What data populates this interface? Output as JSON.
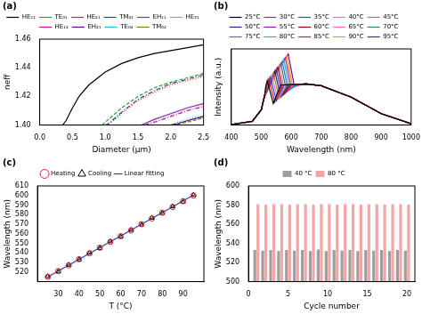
{
  "chart_data": [
    {
      "type": "line",
      "title": "(a)",
      "x_label": "Diameter (μm)",
      "y_label": "neff",
      "xlim": [
        0,
        2.5
      ],
      "xticks": [
        {
          "value": 0,
          "label": "0.0"
        },
        0.5,
        {
          "value": 1,
          "label": "1.0"
        },
        1.5,
        {
          "value": 2,
          "label": "2.0"
        },
        2.5
      ],
      "ylim": [
        1.4,
        1.46
      ],
      "yticks": [
        {
          "value": 1.4,
          "label": "1.40"
        },
        1.42,
        1.44,
        1.46
      ],
      "grid": false,
      "legend": "top",
      "series": [
        {
          "name": "HE₁₁",
          "color": "#000000",
          "line_style": "solid",
          "x": [
            0.35,
            0.4,
            0.5,
            0.6,
            0.75,
            1.0,
            1.25,
            1.5,
            1.75,
            2.0,
            2.25,
            2.5
          ],
          "values": [
            1.4,
            1.403,
            1.412,
            1.42,
            1.428,
            1.437,
            1.443,
            1.447,
            1.45,
            1.452,
            1.454,
            1.456
          ]
        },
        {
          "name": "TE₀₁",
          "color": "#2ca02c",
          "line_style": "dashed",
          "x": [
            0.95,
            1.0,
            1.1,
            1.25,
            1.5,
            1.75,
            2.0,
            2.25,
            2.5
          ],
          "values": [
            1.4,
            1.402,
            1.406,
            1.412,
            1.42,
            1.426,
            1.43,
            1.433,
            1.436
          ]
        },
        {
          "name": "HE₂₁",
          "color": "#d62728",
          "line_style": "dotted",
          "x": [
            1.02,
            1.1,
            1.25,
            1.5,
            1.75,
            2.0,
            2.25,
            2.5
          ],
          "values": [
            1.4,
            1.402,
            1.408,
            1.417,
            1.423,
            1.428,
            1.431,
            1.434
          ]
        },
        {
          "name": "TM₀₁",
          "color": "#1f3fbf",
          "line_style": "dashdot",
          "x": [
            1.0,
            1.05,
            1.1,
            1.25,
            1.5,
            1.75,
            2.0,
            2.25,
            2.5
          ],
          "values": [
            1.4,
            1.401,
            1.403,
            1.409,
            1.418,
            1.424,
            1.429,
            1.432,
            1.435
          ]
        },
        {
          "name": "EH₁₁",
          "color": "#7b2fbe",
          "line_style": "solid",
          "x": [
            1.55,
            1.6,
            1.75,
            2.0,
            2.25,
            2.5
          ],
          "values": [
            1.4,
            1.401,
            1.404,
            1.408,
            1.412,
            1.415
          ]
        },
        {
          "name": "HE₃₁",
          "color": "#e377c2",
          "line_style": "dotted",
          "x": [
            1.58,
            1.75,
            2.0,
            2.25,
            2.5
          ],
          "values": [
            1.4,
            1.403,
            1.407,
            1.411,
            1.414
          ]
        },
        {
          "name": "HE₁₂",
          "color": "#c71585",
          "line_style": "dashdot",
          "x": [
            1.6,
            1.75,
            2.0,
            2.25,
            2.5
          ],
          "values": [
            1.4,
            1.402,
            1.406,
            1.41,
            1.413
          ]
        },
        {
          "name": "EH₂₁",
          "color": "#4b0082",
          "line_style": "solid",
          "x": [
            2.0,
            2.1,
            2.25,
            2.5
          ],
          "values": [
            1.4,
            1.401,
            1.403,
            1.406
          ]
        },
        {
          "name": "TE₀₂",
          "color": "#17becf",
          "line_style": "dotted",
          "x": [
            1.98,
            2.1,
            2.25,
            2.5
          ],
          "values": [
            1.4,
            1.402,
            1.404,
            1.407
          ]
        },
        {
          "name": "TM₀₂",
          "color": "#8c6d1f",
          "line_style": "dashed",
          "x": [
            2.02,
            2.1,
            2.25,
            2.5
          ],
          "values": [
            1.4,
            1.4005,
            1.402,
            1.405
          ]
        }
      ]
    },
    {
      "type": "line",
      "title": "(b)",
      "x_label": "Wavelength (nm)",
      "y_label": "Intensity (a.u.)",
      "xlim": [
        400,
        1000
      ],
      "xticks": [
        400,
        500,
        600,
        700,
        800,
        900,
        1000
      ],
      "ylim": [
        0,
        3
      ],
      "tick_labels": "x",
      "grid": false,
      "legend": "top",
      "series": [
        {
          "name": "25°C",
          "color": "#000000",
          "line_style": "solid",
          "x": [
            400,
            470,
            500,
            510,
            515,
            520,
            540,
            565,
            650,
            700,
            800,
            900,
            1000
          ],
          "values": [
            0.02,
            0.15,
            0.6,
            1.1,
            1.53,
            1.75,
            0.85,
            1.58,
            1.62,
            1.55,
            1.1,
            0.45,
            0.05
          ]
        },
        {
          "name": "30°C",
          "color": "#e41a1c",
          "line_style": "solid",
          "x": [
            400,
            470,
            500,
            510,
            517.5,
            525,
            545,
            570,
            650,
            700,
            800,
            900,
            1000
          ],
          "values": [
            0.02,
            0.15,
            0.6,
            1.1,
            1.57,
            1.83,
            0.9,
            1.58,
            1.62,
            1.55,
            1.1,
            0.45,
            0.05
          ]
        },
        {
          "name": "35°C",
          "color": "#1f4fd8",
          "line_style": "solid",
          "x": [
            400,
            470,
            500,
            510,
            520,
            530,
            550,
            575,
            650,
            700,
            800,
            900,
            1000
          ],
          "values": [
            0.02,
            0.15,
            0.6,
            1.1,
            1.6,
            1.9,
            0.95,
            1.58,
            1.62,
            1.55,
            1.1,
            0.45,
            0.05
          ]
        },
        {
          "name": "40°C",
          "color": "#e377c2",
          "line_style": "solid",
          "x": [
            400,
            470,
            500,
            510,
            522.5,
            535,
            555,
            580,
            650,
            700,
            800,
            900,
            1000
          ],
          "values": [
            0.02,
            0.15,
            0.6,
            1.1,
            1.64,
            1.98,
            1.0,
            1.58,
            1.62,
            1.55,
            1.1,
            0.45,
            0.05
          ]
        },
        {
          "name": "45°C",
          "color": "#b8860b",
          "line_style": "solid",
          "x": [
            400,
            470,
            500,
            510,
            525,
            540,
            560,
            585,
            650,
            700,
            800,
            900,
            1000
          ],
          "values": [
            0.02,
            0.15,
            0.6,
            1.1,
            1.68,
            2.05,
            1.05,
            1.58,
            1.62,
            1.55,
            1.1,
            0.45,
            0.05
          ]
        },
        {
          "name": "50°C",
          "color": "#1a237e",
          "line_style": "solid",
          "x": [
            400,
            470,
            500,
            510,
            527.5,
            545,
            565,
            590,
            650,
            700,
            800,
            900,
            1000
          ],
          "values": [
            0.02,
            0.15,
            0.6,
            1.1,
            1.72,
            2.13,
            1.1,
            1.58,
            1.62,
            1.55,
            1.1,
            0.45,
            0.05
          ]
        },
        {
          "name": "55°C",
          "color": "#7b1fa2",
          "line_style": "solid",
          "x": [
            400,
            470,
            500,
            510,
            530,
            550,
            570,
            595,
            650,
            700,
            800,
            900,
            1000
          ],
          "values": [
            0.02,
            0.15,
            0.6,
            1.1,
            1.75,
            2.2,
            1.15,
            1.58,
            1.62,
            1.55,
            1.1,
            0.45,
            0.05
          ]
        },
        {
          "name": "60°C",
          "color": "#8b0000",
          "line_style": "solid",
          "x": [
            400,
            470,
            500,
            510,
            532.5,
            555,
            575,
            600,
            650,
            700,
            800,
            900,
            1000
          ],
          "values": [
            0.02,
            0.15,
            0.6,
            1.1,
            1.79,
            2.28,
            1.2,
            1.58,
            1.62,
            1.55,
            1.1,
            0.45,
            0.05
          ]
        },
        {
          "name": "65°C",
          "color": "#ff69b4",
          "line_style": "solid",
          "x": [
            400,
            470,
            500,
            510,
            535,
            560,
            580,
            605,
            650,
            700,
            800,
            900,
            1000
          ],
          "values": [
            0.02,
            0.15,
            0.6,
            1.1,
            1.83,
            2.35,
            1.25,
            1.58,
            1.62,
            1.55,
            1.1,
            0.45,
            0.05
          ]
        },
        {
          "name": "70°C",
          "color": "#2e8b57",
          "line_style": "solid",
          "x": [
            400,
            470,
            500,
            510,
            537.5,
            565,
            585,
            610,
            650,
            700,
            800,
            900,
            1000
          ],
          "values": [
            0.02,
            0.15,
            0.6,
            1.1,
            1.87,
            2.43,
            1.3,
            1.58,
            1.62,
            1.55,
            1.1,
            0.45,
            0.05
          ]
        },
        {
          "name": "75°C",
          "color": "#4169e1",
          "line_style": "solid",
          "x": [
            400,
            470,
            500,
            510,
            540,
            570,
            590,
            615,
            650,
            700,
            800,
            900,
            1000
          ],
          "values": [
            0.02,
            0.15,
            0.6,
            1.1,
            1.9,
            2.5,
            1.35,
            1.58,
            1.62,
            1.55,
            1.1,
            0.45,
            0.05
          ]
        },
        {
          "name": "80°C",
          "color": "#00bcd4",
          "line_style": "solid",
          "x": [
            400,
            470,
            500,
            510,
            542.5,
            575,
            595,
            620,
            650,
            700,
            800,
            900,
            1000
          ],
          "values": [
            0.02,
            0.15,
            0.6,
            1.1,
            1.94,
            2.58,
            1.4,
            1.58,
            1.62,
            1.55,
            1.1,
            0.45,
            0.05
          ]
        },
        {
          "name": "85°C",
          "color": "#c71585",
          "line_style": "solid",
          "x": [
            400,
            470,
            500,
            510,
            545,
            580,
            600,
            625,
            650,
            700,
            800,
            900,
            1000
          ],
          "values": [
            0.02,
            0.15,
            0.6,
            1.1,
            1.98,
            2.65,
            1.45,
            1.58,
            1.62,
            1.55,
            1.1,
            0.45,
            0.05
          ]
        },
        {
          "name": "90°C",
          "color": "#ff8c00",
          "line_style": "solid",
          "x": [
            400,
            470,
            500,
            510,
            547.5,
            585,
            605,
            630,
            650,
            700,
            800,
            900,
            1000
          ],
          "values": [
            0.02,
            0.15,
            0.6,
            1.1,
            2.02,
            2.73,
            1.5,
            1.58,
            1.62,
            1.55,
            1.1,
            0.45,
            0.05
          ]
        },
        {
          "name": "95°C",
          "color": "#6a0dad",
          "line_style": "solid",
          "x": [
            400,
            470,
            500,
            510,
            550,
            590,
            610,
            635,
            650,
            700,
            800,
            900,
            1000
          ],
          "values": [
            0.02,
            0.15,
            0.6,
            1.1,
            2.05,
            2.8,
            1.55,
            1.58,
            1.62,
            1.55,
            1.1,
            0.45,
            0.05
          ]
        }
      ]
    },
    {
      "type": "scatter",
      "title": "(c)",
      "x_label": "T (°C)",
      "y_label": "Wavelength (nm)",
      "xlim": [
        20,
        100
      ],
      "xticks": [
        30,
        40,
        50,
        60,
        70,
        80,
        90
      ],
      "ylim": [
        510,
        610
      ],
      "yticks": [
        520,
        530,
        540,
        550,
        560,
        570,
        580,
        590,
        600,
        610
      ],
      "grid": false,
      "legend": "top",
      "series": [
        {
          "name": "Heating",
          "color": "#e02020",
          "marker": "circle",
          "x": [
            25,
            30,
            35,
            40,
            45,
            50,
            55,
            60,
            65,
            70,
            75,
            80,
            85,
            90,
            95
          ],
          "values": [
            515,
            521,
            527,
            533.5,
            539.5,
            545.5,
            551.5,
            557.5,
            563.5,
            570,
            576,
            582,
            588,
            594,
            600
          ]
        },
        {
          "name": "Cooling",
          "color": "#000000",
          "marker": "triangle",
          "x": [
            25,
            30,
            35,
            40,
            45,
            50,
            55,
            60,
            65,
            70,
            75,
            80,
            85,
            90,
            95
          ],
          "values": [
            515.5,
            520.5,
            527.5,
            533,
            540,
            545,
            552,
            557,
            564,
            569.5,
            576.5,
            581.5,
            588.5,
            593.5,
            600.5
          ]
        },
        {
          "name": "Linear fitting",
          "color": "#1f3fbf",
          "type": "line",
          "line_style": "solid",
          "x": [
            25,
            95
          ],
          "values": [
            515,
            600.5
          ]
        }
      ]
    },
    {
      "type": "bar",
      "title": "(d)",
      "x_label": "Cycle number",
      "y_label": "Wavelength (nm)",
      "x": [
        1,
        2,
        3,
        4,
        5,
        6,
        7,
        8,
        9,
        10,
        11,
        12,
        13,
        14,
        15,
        16,
        17,
        18,
        19,
        20
      ],
      "xlim": [
        0,
        21
      ],
      "xticks": [
        0,
        5,
        10,
        15,
        20
      ],
      "ylim": [
        500,
        600
      ],
      "yticks": [
        500,
        520,
        540,
        560,
        580,
        600
      ],
      "grid": false,
      "legend": "top",
      "series": [
        {
          "name": "40 °C",
          "color": "#9e9e9e",
          "values": [
            533,
            532.5,
            533,
            532,
            533,
            532.5,
            533,
            532,
            533.5,
            532,
            533,
            532.5,
            533,
            532,
            533,
            532.5,
            533,
            532,
            533,
            532.5
          ]
        },
        {
          "name": "80 °C",
          "color": "#f4a6a6",
          "values": [
            581,
            580.5,
            581,
            581,
            580.5,
            581,
            581,
            580.5,
            581,
            581,
            580.5,
            581,
            581,
            580.5,
            581,
            581,
            580.5,
            581,
            581,
            580.5
          ]
        }
      ]
    }
  ]
}
